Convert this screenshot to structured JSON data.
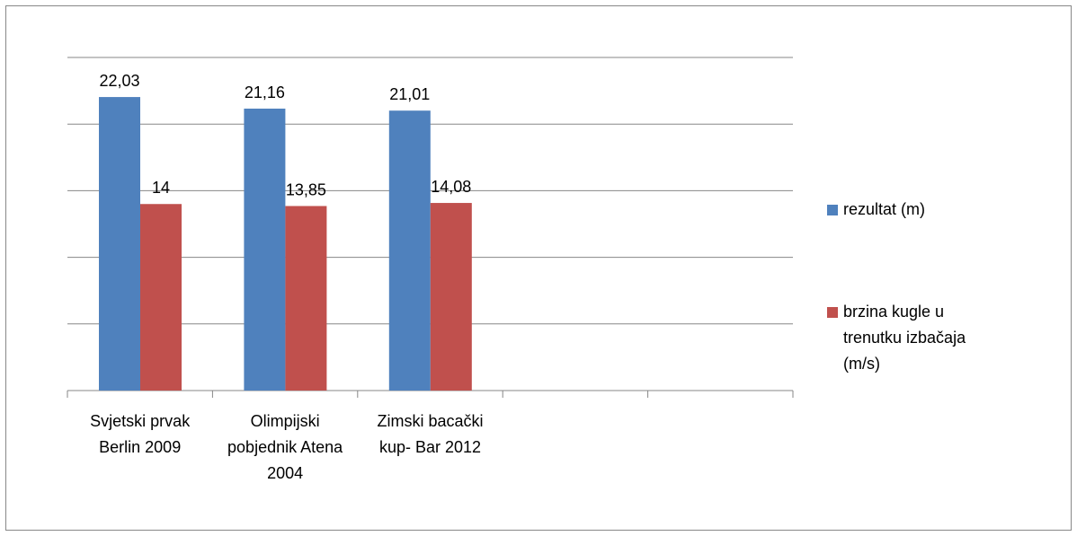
{
  "chart_data": {
    "type": "bar",
    "categories": [
      "Svjetski prvak Berlin 2009",
      "Olimpijski pobjednik Atena 2004",
      "Zimski bacački kup- Bar 2012",
      null,
      null
    ],
    "series": [
      {
        "name": "rezultat (m)",
        "color": "#4f81bd",
        "values": [
          22.03,
          21.16,
          21.01,
          null,
          null
        ],
        "value_labels": [
          "22,03",
          "21,16",
          "21,01",
          null,
          null
        ]
      },
      {
        "name": "brzina kugle u trenutku izbačaja (m/s)",
        "color": "#c0504d",
        "values": [
          14,
          13.85,
          14.08,
          null,
          null
        ],
        "value_labels": [
          "14",
          "13,85",
          "14,08",
          null,
          null
        ]
      }
    ],
    "ylim": [
      0,
      25
    ],
    "yticks": [
      0,
      5,
      10,
      15,
      20,
      25
    ],
    "grid": true,
    "legend": "right"
  }
}
